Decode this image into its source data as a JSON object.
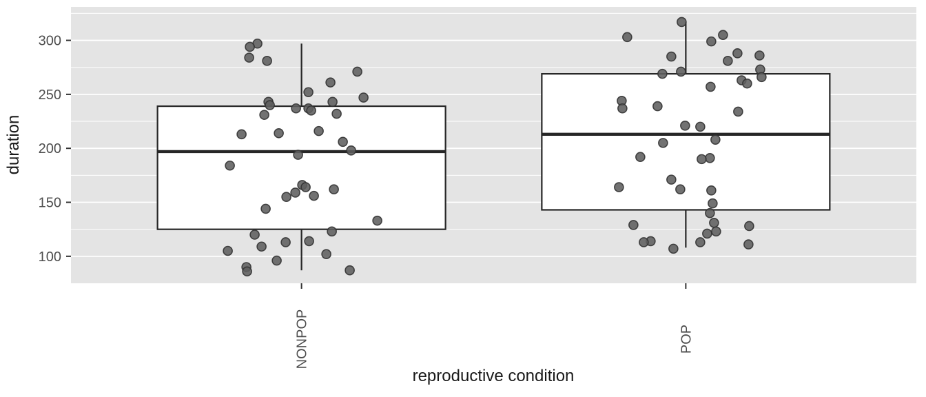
{
  "figure": {
    "kind": "ggplot-style boxplot with jittered points",
    "x_axis_title": "reproductive condition",
    "y_axis_title": "duration"
  },
  "chart_data": {
    "type": "boxplot-jitter",
    "title": "",
    "xlabel": "reproductive condition",
    "ylabel": "duration",
    "categories": [
      "NONPOP",
      "POP"
    ],
    "y_ticks": [
      100,
      150,
      200,
      250,
      300
    ],
    "y_minor_ticks": [
      125,
      175,
      225,
      275,
      325
    ],
    "ylim": [
      75,
      331
    ],
    "grid": true,
    "legend": "none",
    "boxes": [
      {
        "category": "NONPOP",
        "whisker_low": 87,
        "q1": 125,
        "median": 197,
        "q3": 239,
        "whisker_high": 297
      },
      {
        "category": "POP",
        "whisker_low": 108,
        "q1": 143,
        "median": 213,
        "q3": 269,
        "whisker_high": 317
      }
    ],
    "points": [
      {
        "category": "NONPOP",
        "values": [
          [
            297,
            -64
          ],
          [
            294,
            -75
          ],
          [
            284,
            -76
          ],
          [
            281,
            -50
          ],
          [
            271,
            81
          ],
          [
            261,
            42
          ],
          [
            252,
            10
          ],
          [
            247,
            90
          ],
          [
            243,
            -48
          ],
          [
            243,
            45
          ],
          [
            240,
            -46
          ],
          [
            237,
            -8
          ],
          [
            237,
            10
          ],
          [
            235,
            14
          ],
          [
            232,
            51
          ],
          [
            231,
            -54
          ],
          [
            216,
            25
          ],
          [
            214,
            -33
          ],
          [
            213,
            -87
          ],
          [
            206,
            60
          ],
          [
            198,
            72
          ],
          [
            194,
            -5
          ],
          [
            184,
            -104
          ],
          [
            166,
            1
          ],
          [
            164,
            6
          ],
          [
            162,
            47
          ],
          [
            159,
            -9
          ],
          [
            156,
            18
          ],
          [
            155,
            -22
          ],
          [
            144,
            -52
          ],
          [
            133,
            110
          ],
          [
            123,
            44
          ],
          [
            120,
            -68
          ],
          [
            114,
            11
          ],
          [
            113,
            -23
          ],
          [
            109,
            -58
          ],
          [
            105,
            -107
          ],
          [
            102,
            36
          ],
          [
            96,
            -36
          ],
          [
            90,
            -80
          ],
          [
            87,
            70
          ],
          [
            86,
            -79
          ]
        ]
      },
      {
        "category": "POP",
        "values": [
          [
            317,
            -6
          ],
          [
            305,
            54
          ],
          [
            303,
            -85
          ],
          [
            299,
            37
          ],
          [
            288,
            75
          ],
          [
            286,
            107
          ],
          [
            285,
            -21
          ],
          [
            281,
            61
          ],
          [
            273,
            108
          ],
          [
            271,
            -7
          ],
          [
            269,
            -34
          ],
          [
            266,
            110
          ],
          [
            263,
            81
          ],
          [
            260,
            89
          ],
          [
            257,
            36
          ],
          [
            244,
            -93
          ],
          [
            239,
            -41
          ],
          [
            237,
            -92
          ],
          [
            234,
            76
          ],
          [
            221,
            -1
          ],
          [
            220,
            21
          ],
          [
            208,
            43
          ],
          [
            205,
            -33
          ],
          [
            192,
            -66
          ],
          [
            191,
            35
          ],
          [
            190,
            23
          ],
          [
            171,
            -21
          ],
          [
            164,
            -97
          ],
          [
            162,
            -8
          ],
          [
            161,
            37
          ],
          [
            149,
            39
          ],
          [
            140,
            35
          ],
          [
            131,
            41
          ],
          [
            129,
            -76
          ],
          [
            128,
            92
          ],
          [
            123,
            44
          ],
          [
            121,
            31
          ],
          [
            114,
            -51
          ],
          [
            113,
            -61
          ],
          [
            113,
            21
          ],
          [
            111,
            91
          ],
          [
            107,
            -18
          ]
        ]
      }
    ],
    "style": {
      "panel_bg": "#e4e4e4",
      "grid_color": "#ffffff",
      "box_fill": "#ffffff",
      "box_stroke": "#262626",
      "point_fill": "#5e5e5e",
      "point_stroke": "#333333",
      "tick_label_color": "#4d4d4d",
      "axis_title_color": "#1a1a1a",
      "tick_mark_color": "#333333"
    }
  }
}
